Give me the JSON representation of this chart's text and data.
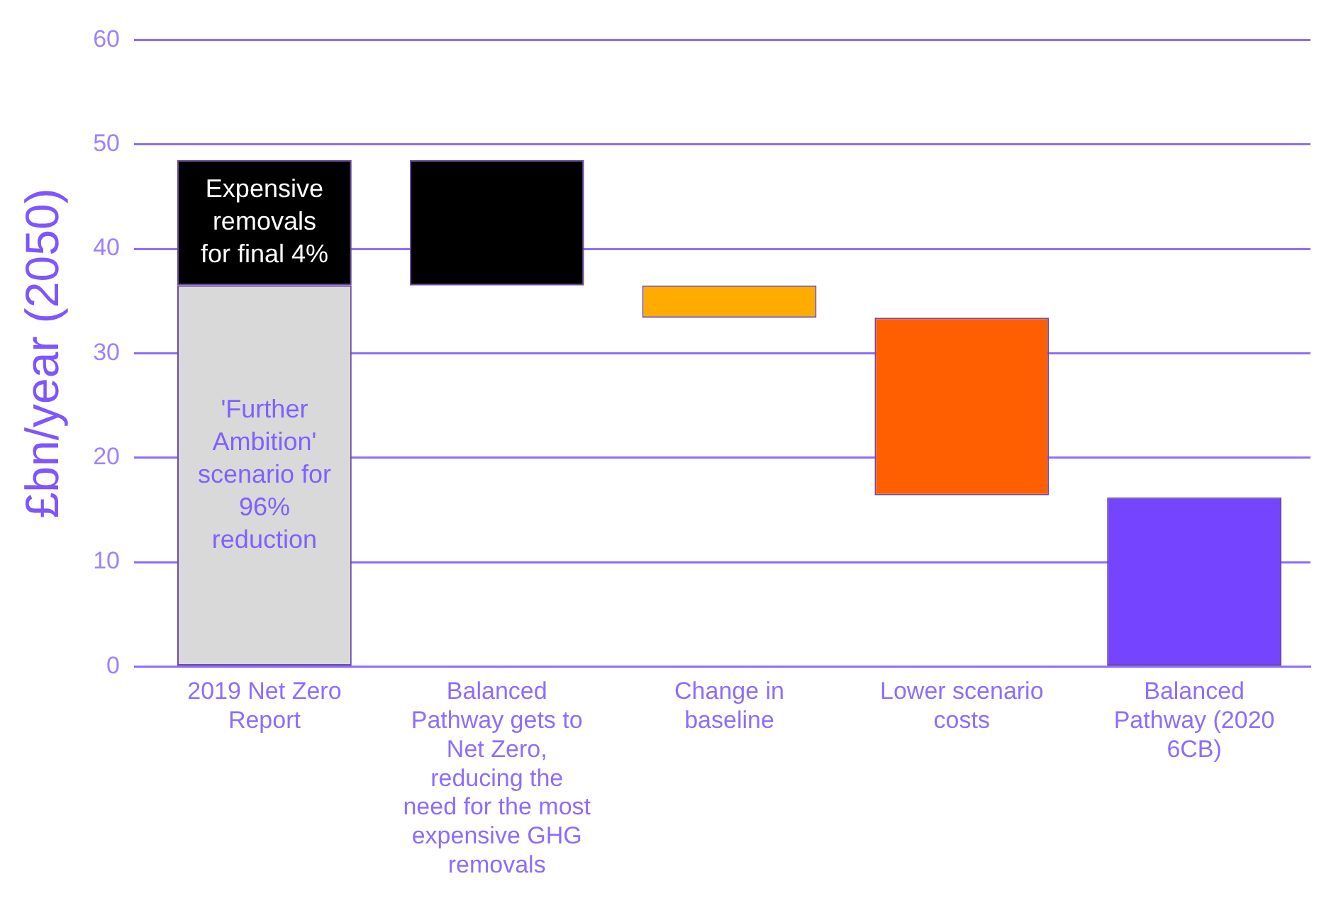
{
  "chart_data": {
    "type": "bar",
    "ylabel": "£bn/year (2050)",
    "categories": [
      "2019 Net Zero Report",
      "Balanced Pathway gets to Net Zero, reducing the need for the most expensive GHG removals",
      "Change in baseline",
      "Lower scenario costs",
      "Balanced Pathway (2020 6CB)"
    ],
    "series": [
      {
        "color": "#d9d9d9",
        "values": [
          36.5,
          null,
          null,
          null,
          null
        ],
        "base": [
          0,
          null,
          null,
          null,
          null
        ]
      },
      {
        "colors": [
          "#000000",
          "#000000",
          "#ffab00",
          "#ff5f00",
          "#7444ff"
        ],
        "values": [
          12,
          12,
          3.1,
          17.0,
          16.2
        ],
        "base": [
          36.5,
          36.5,
          33.4,
          16.4,
          0
        ]
      }
    ],
    "ylim": [
      0,
      60
    ],
    "yticks": [
      0,
      10,
      20,
      30,
      40,
      50,
      60
    ],
    "grid": "y",
    "legend": false,
    "annotations": [
      "Expensive removals for final 4%",
      "'Further Ambition' scenario for 96% reduction"
    ]
  }
}
